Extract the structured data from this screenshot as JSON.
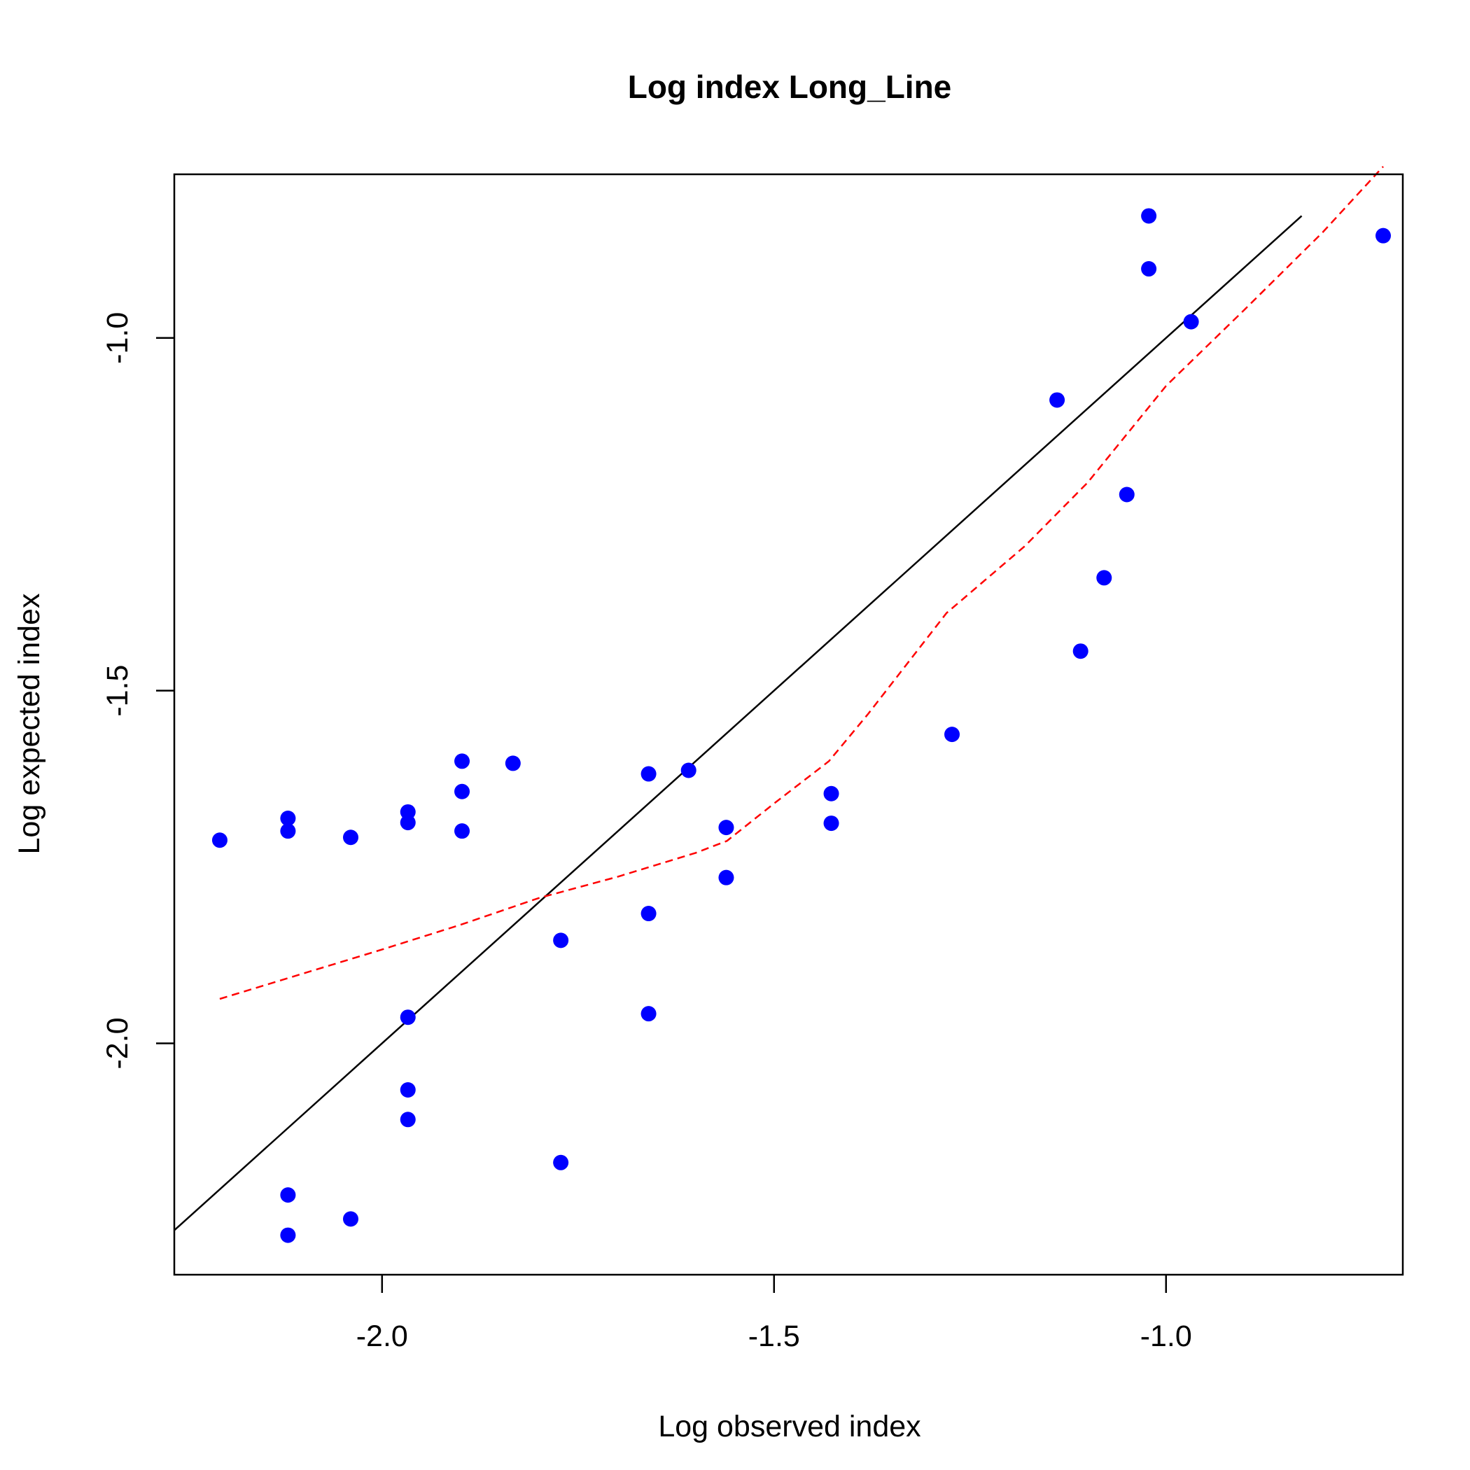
{
  "chart_data": {
    "type": "scatter",
    "title": "Log index Long_Line",
    "xlabel": "Log observed index",
    "ylabel": "Log expected index",
    "xlim": [
      -2.265,
      -0.698
    ],
    "ylim": [
      -2.328,
      -0.768
    ],
    "x_ticks": [
      -2.0,
      -1.5,
      -1.0
    ],
    "x_tick_labels": [
      "-2.0",
      "-1.5",
      "-1.0"
    ],
    "y_ticks": [
      -2.0,
      -1.5,
      -1.0
    ],
    "y_tick_labels": [
      "-2.0",
      "-1.5",
      "-1.0"
    ],
    "grid": false,
    "points_color": "#0000ff",
    "points": [
      {
        "x": -2.207,
        "y": -1.712
      },
      {
        "x": -2.12,
        "y": -1.681
      },
      {
        "x": -2.12,
        "y": -1.699
      },
      {
        "x": -2.12,
        "y": -2.215
      },
      {
        "x": -2.12,
        "y": -2.272
      },
      {
        "x": -2.04,
        "y": -1.708
      },
      {
        "x": -2.04,
        "y": -2.249
      },
      {
        "x": -1.967,
        "y": -1.672
      },
      {
        "x": -1.967,
        "y": -1.687
      },
      {
        "x": -1.967,
        "y": -1.963
      },
      {
        "x": -1.967,
        "y": -2.066
      },
      {
        "x": -1.967,
        "y": -2.108
      },
      {
        "x": -1.898,
        "y": -1.6
      },
      {
        "x": -1.898,
        "y": -1.643
      },
      {
        "x": -1.898,
        "y": -1.699
      },
      {
        "x": -1.833,
        "y": -1.603
      },
      {
        "x": -1.772,
        "y": -1.854
      },
      {
        "x": -1.772,
        "y": -2.169
      },
      {
        "x": -1.66,
        "y": -1.618
      },
      {
        "x": -1.66,
        "y": -1.816
      },
      {
        "x": -1.66,
        "y": -1.958
      },
      {
        "x": -1.609,
        "y": -1.613
      },
      {
        "x": -1.561,
        "y": -1.694
      },
      {
        "x": -1.561,
        "y": -1.765
      },
      {
        "x": -1.427,
        "y": -1.646
      },
      {
        "x": -1.427,
        "y": -1.688
      },
      {
        "x": -1.273,
        "y": -1.562
      },
      {
        "x": -1.139,
        "y": -1.088
      },
      {
        "x": -1.109,
        "y": -1.444
      },
      {
        "x": -1.079,
        "y": -1.34
      },
      {
        "x": -1.05,
        "y": -1.222
      },
      {
        "x": -1.022,
        "y": -0.827
      },
      {
        "x": -1.022,
        "y": -0.902
      },
      {
        "x": -0.968,
        "y": -0.977
      },
      {
        "x": -0.723,
        "y": -0.855
      }
    ],
    "identity_line": {
      "color": "#000000",
      "style": "solid",
      "x": [
        -2.265,
        -0.827
      ],
      "y": [
        -2.265,
        -0.827
      ]
    },
    "smooth_line": {
      "color": "#ff0000",
      "style": "dashed",
      "x": [
        -2.207,
        -2.0,
        -1.9,
        -1.8,
        -1.7,
        -1.6,
        -1.56,
        -1.5,
        -1.43,
        -1.38,
        -1.28,
        -1.18,
        -1.1,
        -1.0,
        -0.9,
        -0.8,
        -0.723
      ],
      "y": [
        -1.937,
        -1.867,
        -1.832,
        -1.794,
        -1.764,
        -1.73,
        -1.713,
        -1.66,
        -1.6,
        -1.533,
        -1.39,
        -1.295,
        -1.205,
        -1.068,
        -0.96,
        -0.85,
        -0.757
      ]
    }
  }
}
